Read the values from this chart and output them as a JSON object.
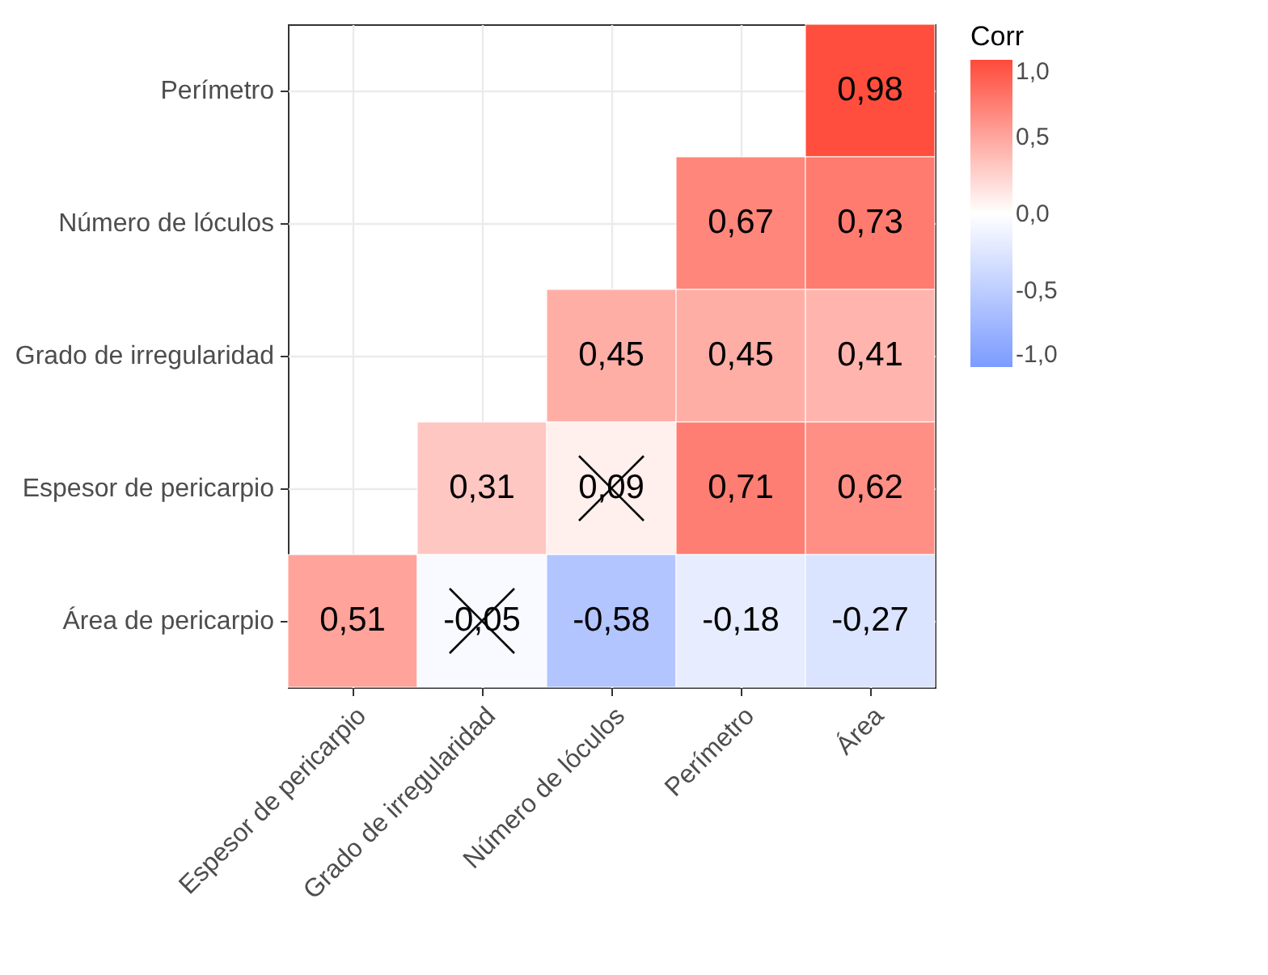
{
  "chart_data": {
    "type": "heatmap",
    "legend_title": "Corr",
    "categories": [
      "Espesor de pericarpio",
      "Grado de irregularidad",
      "Número de lóculos",
      "Perímetro",
      "Área"
    ],
    "y_categories": [
      "Perímetro",
      "Número de lóculos",
      "Grado de irregularidad",
      "Espesor de pericarpio",
      "Área de pericarpio"
    ],
    "cells": [
      [
        null,
        null,
        null,
        null,
        0.98
      ],
      [
        null,
        null,
        null,
        0.67,
        0.73
      ],
      [
        null,
        null,
        0.45,
        0.45,
        0.41
      ],
      [
        null,
        0.31,
        0.09,
        0.71,
        0.62
      ],
      [
        0.51,
        -0.05,
        -0.58,
        -0.18,
        -0.27
      ]
    ],
    "cell_labels": [
      [
        null,
        null,
        null,
        null,
        "0,98"
      ],
      [
        null,
        null,
        null,
        "0,67",
        "0,73"
      ],
      [
        null,
        null,
        "0,45",
        "0,45",
        "0,41"
      ],
      [
        null,
        "0,31",
        "0,09",
        "0,71",
        "0,62"
      ],
      [
        "0,51",
        "-0,05",
        "-0,58",
        "-0,18",
        "-0,27"
      ]
    ],
    "colors": [
      "#7b9bff",
      "#ffffff",
      "#ff4a3a"
    ],
    "clim": [
      -1,
      1
    ],
    "cticks": [
      {
        "value": -1,
        "label": "-1,0"
      },
      {
        "value": -0.5,
        "label": "-0,5"
      },
      {
        "value": 0,
        "label": "0,0"
      },
      {
        "value": 0.5,
        "label": "0,5"
      },
      {
        "value": 1,
        "label": "1,0"
      }
    ],
    "grid": true
  }
}
